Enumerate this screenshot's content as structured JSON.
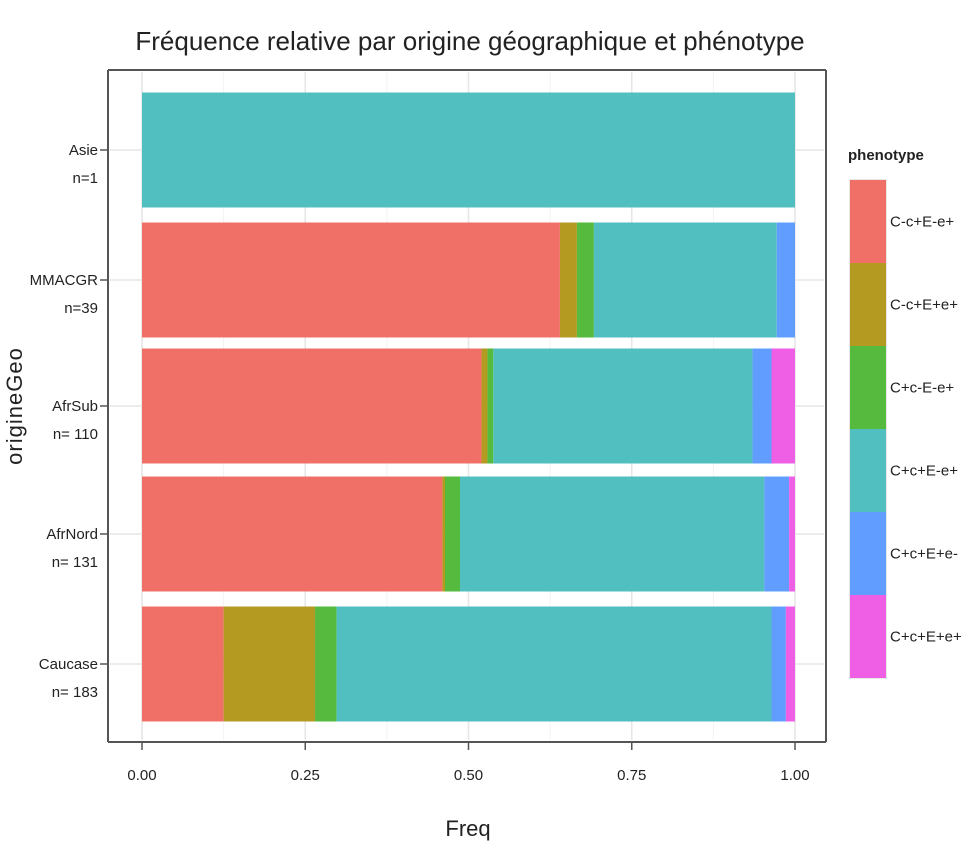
{
  "chart_data": {
    "type": "bar",
    "orientation": "horizontal",
    "stacked": true,
    "title": "Fréquence relative par origine géographique et phénotype",
    "xlabel": "Freq",
    "ylabel": "origineGeo",
    "xlim": [
      0,
      1
    ],
    "xticks": [
      "0.00",
      "0.25",
      "0.50",
      "0.75",
      "1.00"
    ],
    "grid": true,
    "legend_position": "right",
    "legend_title": "phenotype",
    "categories": [
      {
        "name": "Asie",
        "n": "n=1"
      },
      {
        "name": "MMACGR",
        "n": "n=39"
      },
      {
        "name": "AfrSub",
        "n": "n= 110"
      },
      {
        "name": "AfrNord",
        "n": "n= 131"
      },
      {
        "name": "Caucase",
        "n": "n= 183"
      }
    ],
    "series": [
      {
        "name": "C-c+E-e+",
        "color": "#F07068",
        "values": [
          0,
          0.64,
          0.52,
          0.46,
          0.125
        ]
      },
      {
        "name": "C-c+E+e+",
        "color": "#B49A20",
        "values": [
          0,
          0.026,
          0.009,
          0.004,
          0.14
        ]
      },
      {
        "name": "C+c-E-e+",
        "color": "#55BA3E",
        "values": [
          0,
          0.026,
          0.009,
          0.023,
          0.033
        ]
      },
      {
        "name": "C+c+E-e+",
        "color": "#51BFC0",
        "values": [
          1,
          0.28,
          0.397,
          0.466,
          0.666
        ]
      },
      {
        "name": "C+c+E+e-",
        "color": "#619CFF",
        "values": [
          0,
          0.028,
          0.029,
          0.038,
          0.022
        ]
      },
      {
        "name": "C+c+E+e+",
        "color": "#EE5FE5",
        "values": [
          0,
          0,
          0.036,
          0.009,
          0.014
        ]
      }
    ]
  }
}
